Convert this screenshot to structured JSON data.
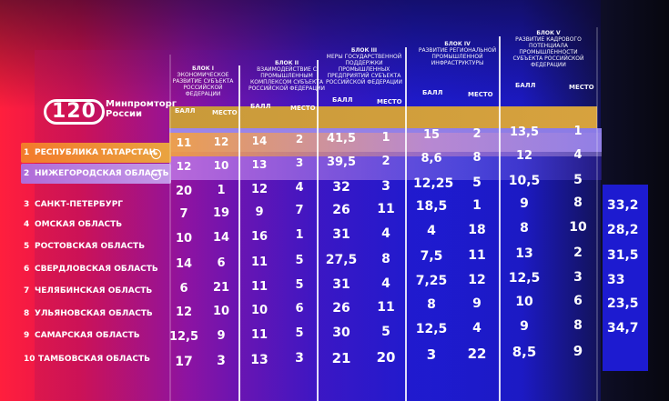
{
  "logo": {
    "number": "120",
    "line1": "Минпромторг",
    "line2": "России"
  },
  "blocks": [
    {
      "title": "БЛОК I",
      "desc": "ЭКОНОМИЧЕСКОЕ РАЗВИТИЕ СУБЪЕКТА РОССИЙСКОЙ ФЕДЕРАЦИИ"
    },
    {
      "title": "БЛОК II",
      "desc": "ВЗАИМОДЕЙСТВИЕ С ПРОМЫШЛЕННЫМ КОМПЛЕКСОМ СУБЪЕКТА РОССИЙСКОЙ ФЕДЕРАЦИИ"
    },
    {
      "title": "БЛОК III",
      "desc": "МЕРЫ ГОСУДАРСТВЕННОЙ ПОДДЕРЖКИ ПРОМЫШЛЕННЫХ ПРЕДПРИЯТИЙ СУБЪЕКТА РОССИЙСКОЙ ФЕДЕРАЦИИ"
    },
    {
      "title": "БЛОК IV",
      "desc": "РАЗВИТИЕ РЕГИОНАЛЬНОЙ ПРОМЫШЛЕННОЙ ИНФРАСТРУКТУРЫ"
    },
    {
      "title": "БЛОК V",
      "desc": "РАЗВИТИЕ КАДРОВОГО ПОТЕНЦИАЛА ПРОМЫШЛЕННОСТИ СУБЪЕКТА РОССИЙСКОЙ ФЕДЕРАЦИИ"
    }
  ],
  "sub": {
    "score": "БАЛЛ",
    "place": "МЕСТО"
  },
  "rows": [
    {
      "rank": "1",
      "region": "РЕСПУБЛИКА ТАТАРСТАН",
      "v": [
        "11",
        "12",
        "14",
        "2",
        "41,5",
        "1",
        "15",
        "2",
        "13,5",
        "1"
      ],
      "extra": ""
    },
    {
      "rank": "2",
      "region": "НИЖЕГОРОДСКАЯ ОБЛАСТЬ",
      "v": [
        "12",
        "10",
        "13",
        "3",
        "39,5",
        "2",
        "8,6",
        "8",
        "12",
        "4"
      ],
      "extra": ""
    },
    {
      "rank": "3",
      "region": "САНКТ-ПЕТЕРБУРГ",
      "v": [
        "20",
        "1",
        "12",
        "4",
        "32",
        "3",
        "12,25",
        "5",
        "10,5",
        "5"
      ],
      "extra": ""
    },
    {
      "rank": "4",
      "region": "ОМСКАЯ ОБЛАСТЬ",
      "v": [
        "7",
        "19",
        "9",
        "7",
        "26",
        "11",
        "18,5",
        "1",
        "9",
        "8"
      ],
      "extra": "33,2"
    },
    {
      "rank": "5",
      "region": "РОСТОВСКАЯ ОБЛАСТЬ",
      "v": [
        "10",
        "14",
        "16",
        "1",
        "31",
        "4",
        "4",
        "18",
        "8",
        "10"
      ],
      "extra": "28,2"
    },
    {
      "rank": "6",
      "region": "СВЕРДЛОВСКАЯ ОБЛАСТЬ",
      "v": [
        "14",
        "6",
        "11",
        "5",
        "27,5",
        "8",
        "7,5",
        "11",
        "13",
        "2"
      ],
      "extra": "31,5"
    },
    {
      "rank": "7",
      "region": "ЧЕЛЯБИНСКАЯ ОБЛАСТЬ",
      "v": [
        "6",
        "21",
        "11",
        "5",
        "31",
        "4",
        "7,25",
        "12",
        "12,5",
        "3"
      ],
      "extra": "33"
    },
    {
      "rank": "8",
      "region": "УЛЬЯНОВСКАЯ ОБЛАСТЬ",
      "v": [
        "12",
        "10",
        "10",
        "6",
        "26",
        "11",
        "8",
        "9",
        "10",
        "6"
      ],
      "extra": "23,5"
    },
    {
      "rank": "9",
      "region": "САМАРСКАЯ ОБЛАСТЬ",
      "v": [
        "12,5",
        "9",
        "11",
        "5",
        "30",
        "5",
        "12,5",
        "4",
        "9",
        "8"
      ],
      "extra": "34,7"
    },
    {
      "rank": "10",
      "region": "ТАМБОВСКАЯ ОБЛАСТЬ",
      "v": [
        "17",
        "3",
        "13",
        "3",
        "21",
        "20",
        "3",
        "22",
        "8,5",
        "9"
      ],
      "extra": ""
    }
  ]
}
